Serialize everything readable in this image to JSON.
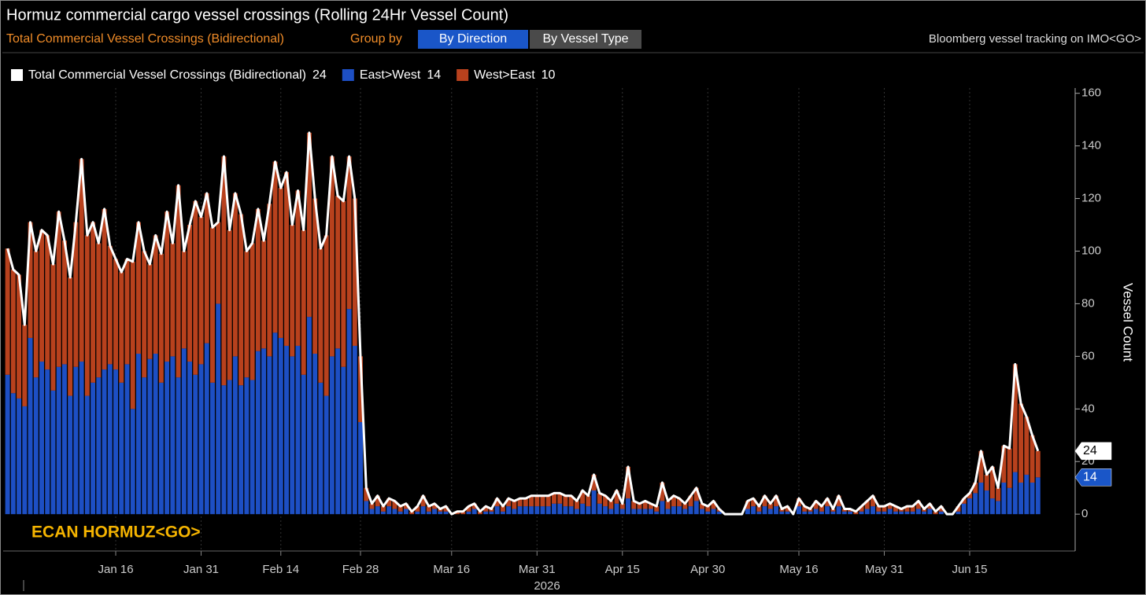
{
  "chart_data": {
    "type": "bar",
    "title": "Hormuz commercial cargo vessel crossings (Rolling 24Hr Vessel Count)",
    "subtitle": "Total Commercial Vessel Crossings (Bidirectional)",
    "group_by_label": "Group by",
    "buttons": [
      "By Direction",
      "By Vessel Type"
    ],
    "source": "Bloomberg vessel tracking on IMO<GO>",
    "command": "ECAN HORMUZ<GO>",
    "ylabel": "Vessel Count",
    "year_label": "2026",
    "stacked": true,
    "ylim": [
      -14,
      162
    ],
    "yticks": [
      0,
      20,
      40,
      60,
      80,
      100,
      120,
      140,
      160
    ],
    "xticks": [
      {
        "value": 19,
        "label": "Jan 16"
      },
      {
        "value": 34,
        "label": "Jan 31"
      },
      {
        "value": 48,
        "label": "Feb 14"
      },
      {
        "value": 62,
        "label": "Feb 28"
      },
      {
        "value": 78,
        "label": "Mar 16"
      },
      {
        "value": 93,
        "label": "Mar 31"
      },
      {
        "value": 108,
        "label": "Apr 15"
      },
      {
        "value": 123,
        "label": "Apr 30"
      },
      {
        "value": 139,
        "label": "May 16"
      },
      {
        "value": 154,
        "label": "May 31"
      },
      {
        "value": 169,
        "label": "Jun 15"
      }
    ],
    "grid": true,
    "series": [
      {
        "name": "East>West",
        "color": "#1d4fc4",
        "values": [
          53,
          46,
          44,
          41,
          67,
          52,
          58,
          55,
          47,
          56,
          57,
          45,
          56,
          58,
          45,
          50,
          52,
          55,
          57,
          55,
          50,
          57,
          40,
          61,
          52,
          59,
          61,
          50,
          58,
          60,
          52,
          63,
          58,
          53,
          57,
          65,
          50,
          80,
          49,
          51,
          60,
          49,
          52,
          51,
          62,
          63,
          60,
          69,
          67,
          64,
          60,
          64,
          53,
          75,
          61,
          50,
          45,
          60,
          63,
          56,
          78,
          64,
          35,
          5,
          2,
          3,
          1,
          3,
          2,
          1,
          2,
          0,
          1,
          3,
          1,
          2,
          1,
          1,
          0,
          0,
          0,
          1,
          2,
          0,
          1,
          1,
          3,
          1,
          3,
          2,
          3,
          3,
          3,
          3,
          3,
          3,
          4,
          4,
          3,
          3,
          2,
          4,
          3,
          9,
          4,
          3,
          2,
          4,
          2,
          6,
          2,
          2,
          2,
          2,
          1,
          5,
          2,
          3,
          3,
          2,
          3,
          5,
          2,
          1,
          2,
          1,
          0,
          0,
          0,
          0,
          2,
          3,
          1,
          3,
          2,
          3,
          1,
          1,
          0,
          3,
          1,
          1,
          2,
          1,
          3,
          1,
          3,
          1,
          1,
          0,
          1,
          2,
          3,
          1,
          1,
          2,
          1,
          1,
          1,
          1,
          2,
          1,
          2,
          0,
          1,
          0,
          0,
          1,
          4,
          6,
          8,
          12,
          9,
          6,
          5,
          12,
          10,
          16,
          12,
          15,
          12,
          14
        ]
      },
      {
        "name": "West>East",
        "color": "#b8411d",
        "values": [
          48,
          47,
          47,
          31,
          44,
          48,
          50,
          51,
          48,
          59,
          47,
          45,
          55,
          77,
          61,
          61,
          51,
          61,
          45,
          42,
          42,
          40,
          56,
          50,
          48,
          36,
          45,
          49,
          57,
          43,
          73,
          37,
          52,
          66,
          56,
          57,
          59,
          31,
          87,
          57,
          62,
          65,
          48,
          52,
          54,
          41,
          58,
          65,
          57,
          66,
          50,
          59,
          55,
          70,
          59,
          51,
          61,
          76,
          58,
          63,
          58,
          56,
          25,
          5,
          2,
          4,
          2,
          3,
          3,
          2,
          2,
          1,
          2,
          4,
          2,
          2,
          1,
          2,
          0,
          1,
          1,
          2,
          2,
          1,
          2,
          1,
          3,
          2,
          3,
          3,
          3,
          3,
          4,
          4,
          4,
          4,
          4,
          4,
          4,
          4,
          3,
          5,
          4,
          6,
          4,
          4,
          3,
          5,
          2,
          12,
          3,
          2,
          3,
          2,
          2,
          7,
          3,
          4,
          3,
          2,
          4,
          5,
          2,
          2,
          3,
          1,
          0,
          0,
          0,
          0,
          3,
          3,
          2,
          4,
          2,
          4,
          1,
          2,
          0,
          3,
          2,
          1,
          3,
          2,
          3,
          1,
          4,
          1,
          1,
          1,
          2,
          3,
          4,
          2,
          2,
          2,
          2,
          1,
          2,
          2,
          3,
          1,
          2,
          1,
          2,
          0,
          0,
          2,
          2,
          2,
          4,
          12,
          6,
          12,
          5,
          14,
          15,
          41,
          30,
          22,
          18,
          10
        ]
      },
      {
        "name": "Total Commercial Vessel Crossings (Bidirectional)",
        "color": "#ffffff",
        "type": "line",
        "values": [
          101,
          93,
          91,
          72,
          111,
          100,
          108,
          106,
          95,
          115,
          104,
          90,
          111,
          135,
          106,
          111,
          103,
          116,
          102,
          97,
          92,
          97,
          96,
          111,
          100,
          95,
          106,
          99,
          115,
          103,
          125,
          100,
          110,
          119,
          113,
          122,
          109,
          111,
          136,
          108,
          122,
          114,
          100,
          103,
          116,
          104,
          118,
          134,
          124,
          130,
          110,
          123,
          108,
          145,
          120,
          101,
          106,
          136,
          121,
          119,
          136,
          120,
          60,
          10,
          4,
          7,
          3,
          6,
          5,
          3,
          4,
          1,
          3,
          7,
          3,
          4,
          2,
          3,
          0,
          1,
          1,
          3,
          4,
          1,
          3,
          2,
          6,
          3,
          6,
          5,
          6,
          6,
          7,
          7,
          7,
          7,
          8,
          8,
          7,
          7,
          5,
          9,
          7,
          15,
          8,
          7,
          5,
          9,
          4,
          18,
          5,
          4,
          5,
          4,
          3,
          12,
          5,
          7,
          6,
          4,
          7,
          10,
          4,
          3,
          5,
          2,
          0,
          0,
          0,
          0,
          5,
          6,
          3,
          7,
          4,
          7,
          2,
          3,
          0,
          6,
          3,
          2,
          5,
          3,
          6,
          2,
          7,
          2,
          2,
          1,
          3,
          5,
          7,
          3,
          3,
          4,
          3,
          2,
          3,
          3,
          5,
          2,
          4,
          1,
          3,
          0,
          0,
          3,
          6,
          8,
          12,
          24,
          15,
          18,
          10,
          26,
          25,
          57,
          42,
          37,
          30,
          24
        ]
      }
    ]
  }
}
